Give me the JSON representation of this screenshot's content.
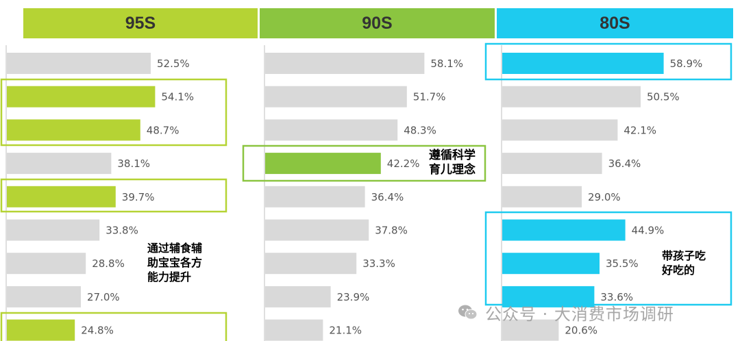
{
  "panels": [
    {
      "title": "95S",
      "header_color": "#b5d334",
      "bar_highlight_color": "#b5d334",
      "highlighted": [
        1,
        2,
        4,
        8
      ]
    },
    {
      "title": "90S",
      "header_color": "#8bc540",
      "bar_highlight_color": "#8bc540",
      "highlighted": [
        3
      ]
    },
    {
      "title": "80S",
      "header_color": "#1ecbef",
      "bar_highlight_color": "#1ecbef",
      "highlighted": [
        0,
        5,
        6,
        7
      ]
    }
  ],
  "annotations": [
    {
      "panel": 0,
      "text": "通过辅食辅\n助宝宝各方\n能力提升",
      "color": "#b5d334"
    },
    {
      "panel": 1,
      "text": "遵循科学\n育儿理念",
      "color": "#8bc540"
    },
    {
      "panel": 2,
      "text": "带孩子吃\n好吃的",
      "color": "#1ecbef"
    }
  ],
  "watermark": {
    "text": "公众号 · 大消费市场调研",
    "icon": "wechat-icon"
  },
  "chart_data": {
    "type": "bar",
    "orientation": "horizontal",
    "gray_color": "#d9d9d9",
    "xlim": [
      0,
      100
    ],
    "series": [
      {
        "name": "95S",
        "values": [
          52.5,
          54.1,
          48.7,
          38.1,
          39.7,
          33.8,
          28.8,
          27.0,
          24.8
        ],
        "labels": [
          "52.5%",
          "54.1%",
          "48.7%",
          "38.1%",
          "39.7%",
          "33.8%",
          "28.8%",
          "27.0%",
          "24.8%"
        ]
      },
      {
        "name": "90S",
        "values": [
          58.1,
          51.7,
          48.3,
          42.2,
          36.4,
          37.8,
          33.3,
          23.9,
          21.1
        ],
        "labels": [
          "58.1%",
          "51.7%",
          "48.3%",
          "42.2%",
          "36.4%",
          "37.8%",
          "33.3%",
          "23.9%",
          "21.1%"
        ]
      },
      {
        "name": "80S",
        "values": [
          58.9,
          50.5,
          42.1,
          36.4,
          29.0,
          44.9,
          35.5,
          33.6,
          20.6
        ],
        "labels": [
          "58.9%",
          "50.5%",
          "42.1%",
          "36.4%",
          "29.0%",
          "44.9%",
          "35.5%",
          "33.6%",
          "20.6%"
        ]
      }
    ]
  }
}
